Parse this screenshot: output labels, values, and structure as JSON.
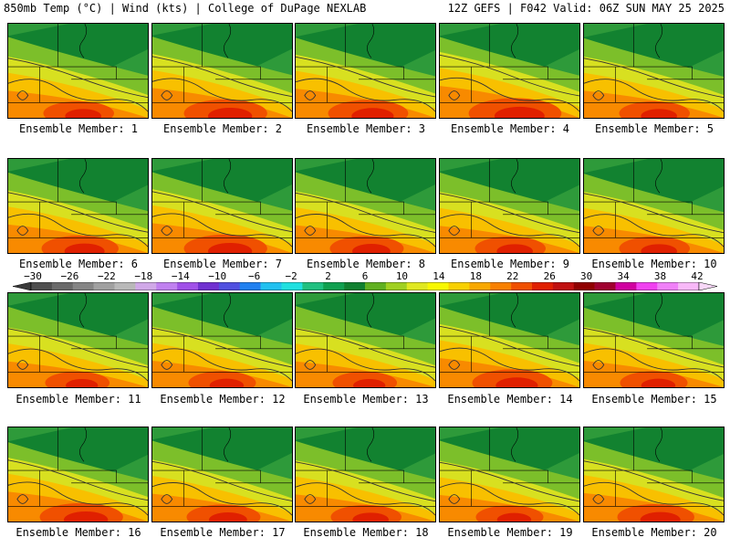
{
  "header": {
    "left": "850mb Temp (°C) | Wind (kts) | College of DuPage NEXLAB",
    "right": "12Z GEFS | F042 Valid: 06Z SUN MAY 25 2025"
  },
  "colorbar": {
    "labels": [
      "−30",
      "−26",
      "−22",
      "−18",
      "−14",
      "−10",
      "−6",
      "−2",
      "2",
      "6",
      "10",
      "14",
      "18",
      "22",
      "26",
      "30",
      "34",
      "38",
      "42"
    ],
    "colors": [
      "#4f4f4f",
      "#6a6a6a",
      "#858585",
      "#a0a0a0",
      "#b8b8b8",
      "#d0a8e8",
      "#c080f0",
      "#a050e8",
      "#7030d0",
      "#5050e0",
      "#2080f0",
      "#20c0f0",
      "#20e0e0",
      "#20c080",
      "#10a050",
      "#108030",
      "#60b020",
      "#a0d020",
      "#e0e820",
      "#f8f800",
      "#f8d000",
      "#f8a800",
      "#f88000",
      "#f05000",
      "#e02000",
      "#c01010",
      "#900000",
      "#a00030",
      "#d000a0",
      "#f040f0",
      "#f080f8",
      "#f8b8f8"
    ]
  },
  "panels": [
    {
      "label": "Ensemble Member: 1",
      "hot": 0.55,
      "cool": 0.35
    },
    {
      "label": "Ensemble Member: 2",
      "hot": 0.75,
      "cool": 0.3
    },
    {
      "label": "Ensemble Member: 3",
      "hot": 0.7,
      "cool": 0.45
    },
    {
      "label": "Ensemble Member: 4",
      "hot": 0.9,
      "cool": 0.35
    },
    {
      "label": "Ensemble Member: 5",
      "hot": 0.55,
      "cool": 0.5
    },
    {
      "label": "Ensemble Member: 6",
      "hot": 0.65,
      "cool": 0.4
    },
    {
      "label": "Ensemble Member: 7",
      "hot": 0.75,
      "cool": 0.35
    },
    {
      "label": "Ensemble Member: 8",
      "hot": 0.6,
      "cool": 0.35
    },
    {
      "label": "Ensemble Member: 9",
      "hot": 0.55,
      "cool": 0.4
    },
    {
      "label": "Ensemble Member: 10",
      "hot": 0.55,
      "cool": 0.55
    },
    {
      "label": "Ensemble Member: 11",
      "hot": 0.45,
      "cool": 0.4
    },
    {
      "label": "Ensemble Member: 12",
      "hot": 0.5,
      "cool": 0.35
    },
    {
      "label": "Ensemble Member: 13",
      "hot": 0.45,
      "cool": 0.3
    },
    {
      "label": "Ensemble Member: 14",
      "hot": 0.7,
      "cool": 0.4
    },
    {
      "label": "Ensemble Member: 15",
      "hot": 0.5,
      "cool": 0.5
    },
    {
      "label": "Ensemble Member: 16",
      "hot": 0.75,
      "cool": 0.55
    },
    {
      "label": "Ensemble Member: 17",
      "hot": 0.6,
      "cool": 0.35
    },
    {
      "label": "Ensemble Member: 18",
      "hot": 0.55,
      "cool": 0.4
    },
    {
      "label": "Ensemble Member: 19",
      "hot": 0.5,
      "cool": 0.35
    },
    {
      "label": "Ensemble Member: 20",
      "hot": 0.65,
      "cool": 0.45
    }
  ]
}
